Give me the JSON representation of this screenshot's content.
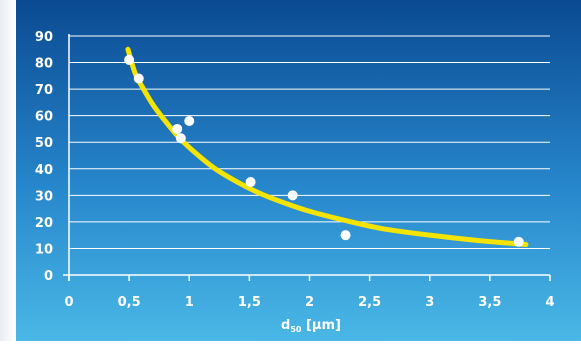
{
  "chart_data": {
    "type": "scatter",
    "xlabel_main": "d",
    "xlabel_sub": "50",
    "xlabel_unit": " [µm]",
    "xlim": [
      0,
      4
    ],
    "ylim": [
      0,
      90
    ],
    "x_ticks": [
      "0",
      "0,5",
      "1",
      "1,5",
      "2",
      "2,5",
      "3",
      "3,5",
      "4"
    ],
    "x_tick_values": [
      0,
      0.5,
      1,
      1.5,
      2,
      2.5,
      3,
      3.5,
      4
    ],
    "y_ticks": [
      "0",
      "10",
      "20",
      "30",
      "40",
      "50",
      "60",
      "70",
      "80",
      "90"
    ],
    "y_tick_values": [
      0,
      10,
      20,
      30,
      40,
      50,
      60,
      70,
      80,
      90
    ],
    "grid": "horizontal",
    "series": [
      {
        "kind": "points",
        "color": "#ffffff",
        "points": [
          {
            "x": 0.5,
            "y": 81
          },
          {
            "x": 0.58,
            "y": 74
          },
          {
            "x": 0.9,
            "y": 55
          },
          {
            "x": 0.93,
            "y": 51.5
          },
          {
            "x": 1.0,
            "y": 58
          },
          {
            "x": 1.51,
            "y": 35
          },
          {
            "x": 1.86,
            "y": 30
          },
          {
            "x": 2.3,
            "y": 15
          },
          {
            "x": 3.74,
            "y": 12.5
          }
        ]
      },
      {
        "kind": "fit-curve",
        "color": "#f5e400",
        "points": [
          {
            "x": 0.49,
            "y": 85
          },
          {
            "x": 0.55,
            "y": 76
          },
          {
            "x": 0.62,
            "y": 70
          },
          {
            "x": 0.7,
            "y": 64
          },
          {
            "x": 0.8,
            "y": 58
          },
          {
            "x": 0.9,
            "y": 52.5
          },
          {
            "x": 1.0,
            "y": 48
          },
          {
            "x": 1.2,
            "y": 40.5
          },
          {
            "x": 1.4,
            "y": 35
          },
          {
            "x": 1.6,
            "y": 30.5
          },
          {
            "x": 1.8,
            "y": 27
          },
          {
            "x": 2.0,
            "y": 24
          },
          {
            "x": 2.3,
            "y": 20.5
          },
          {
            "x": 2.6,
            "y": 17.5
          },
          {
            "x": 3.0,
            "y": 15
          },
          {
            "x": 3.4,
            "y": 13
          },
          {
            "x": 3.8,
            "y": 11.5
          }
        ]
      }
    ]
  },
  "colors": {
    "background_top": "#0a4a92",
    "background_bottom": "#4ab8e6",
    "axis": "#ffffff",
    "text": "#ffffff",
    "grid": "#ffffff"
  }
}
